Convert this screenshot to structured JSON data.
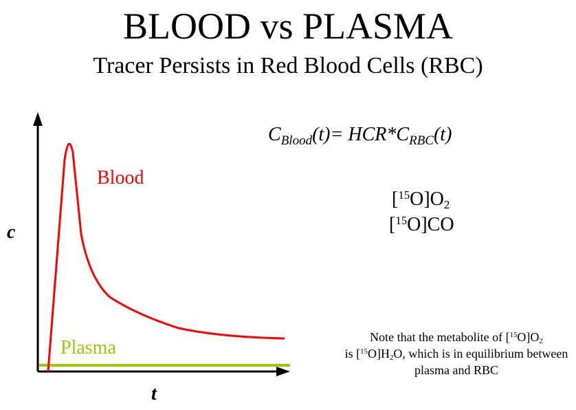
{
  "title": "BLOOD vs PLASMA",
  "subtitle": "Tracer Persists in Red Blood Cells (RBC)",
  "axes": {
    "y_label": "c",
    "x_label": "t"
  },
  "curves": {
    "blood_label": "Blood",
    "plasma_label": "Plasma",
    "colors": {
      "blood": "#ff0000",
      "plasma": "#99cc00",
      "axes": "#000000"
    }
  },
  "equation": {
    "lhs": "C",
    "lhs_sub": "Blood",
    "arg1": "(t)",
    "equals": "= HCR*C",
    "rhs_sub": "RBC",
    "arg2": "(t)"
  },
  "tracers": {
    "o2": {
      "open": "[",
      "mass": "15",
      "mid": "O]O",
      "sub": "2"
    },
    "co": {
      "open": "[",
      "mass": "15",
      "mid": "O]CO"
    }
  },
  "note": {
    "p1": "Note that the metabolite of [",
    "p1_sup": "15",
    "p2": "O]O",
    "p2_sub": "2",
    "p3": "is [",
    "p3_sup": "15",
    "p4": "O]H",
    "p4_sub": "2",
    "p5": "O, which is in equilibrium between plasma and RBC"
  }
}
